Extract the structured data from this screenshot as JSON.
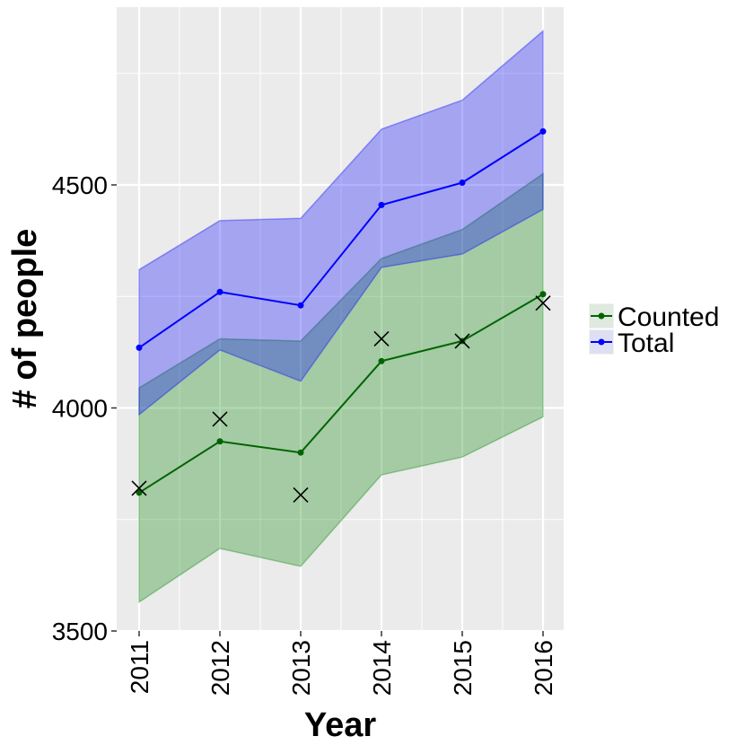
{
  "chart_data": {
    "type": "line",
    "title": "",
    "xlabel": "Year",
    "ylabel": "# of people",
    "x": [
      2011,
      2012,
      2013,
      2014,
      2015,
      2016
    ],
    "x_tick_labels": [
      "2011",
      "2012",
      "2013",
      "2014",
      "2015",
      "2016"
    ],
    "ylim": [
      3500,
      4800
    ],
    "y_ticks": [
      3500,
      4000,
      4500
    ],
    "y_tick_labels": [
      "3500",
      "4000",
      "4500"
    ],
    "grid": true,
    "legend": "right",
    "series": [
      {
        "name": "Counted",
        "color": "#006400",
        "band_color": "#008000",
        "values": [
          3810,
          3925,
          3900,
          4105,
          4150,
          4255
        ],
        "band_lower": [
          3565,
          3685,
          3645,
          3850,
          3890,
          3980
        ],
        "band_upper": [
          4045,
          4155,
          4150,
          4335,
          4400,
          4525
        ]
      },
      {
        "name": "Total",
        "color": "#0000FF",
        "band_color": "#0000FF",
        "values": [
          4135,
          4260,
          4230,
          4455,
          4505,
          4620
        ],
        "band_lower": [
          3985,
          4130,
          4060,
          4315,
          4345,
          4445
        ],
        "band_upper": [
          4310,
          4420,
          4425,
          4625,
          4690,
          4845
        ]
      }
    ],
    "observed": {
      "marker": "x",
      "values": [
        3820,
        3975,
        3805,
        4155,
        4150,
        4235
      ]
    }
  }
}
